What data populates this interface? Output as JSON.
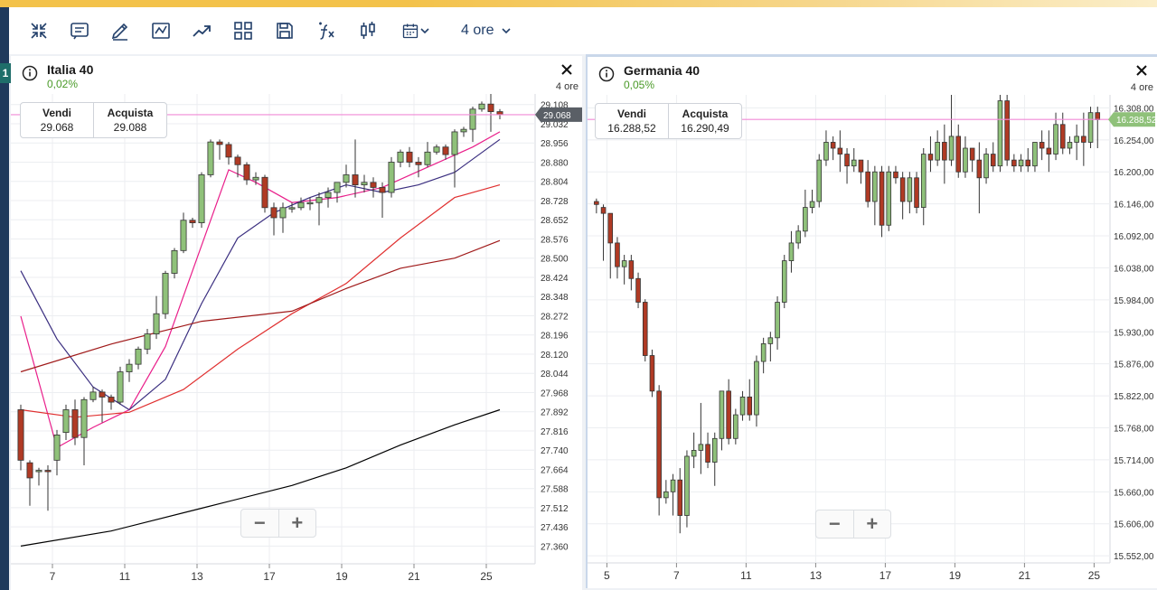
{
  "toolbar": {
    "icons": [
      "compress-icon",
      "notes-icon",
      "draw-icon",
      "chart-type-icon",
      "trend-icon",
      "layout-grid-icon",
      "save-icon",
      "function-icon",
      "candlestick-icon",
      "calendar-icon"
    ],
    "timeframe": "4 ore"
  },
  "sidebar_badge": "1",
  "panels": [
    {
      "title": "Italia 40",
      "change": "0,02%",
      "timeframe": "4 ore",
      "sell_label": "Vendi",
      "sell_value": "29.068",
      "buy_label": "Acquista",
      "buy_value": "29.088",
      "zoom_out": "−",
      "zoom_in": "+"
    },
    {
      "title": "Germania 40",
      "change": "0,05%",
      "timeframe": "4 ore",
      "sell_label": "Vendi",
      "sell_value": "16.288,52",
      "buy_label": "Acquista",
      "buy_value": "16.290,49",
      "zoom_out": "−",
      "zoom_in": "+"
    }
  ],
  "colors": {
    "up_candle": "#8fc17a",
    "down_candle": "#b03a24",
    "price_line": "#f08ad6",
    "accent": "#23406b"
  },
  "chart_data": [
    {
      "type": "candlestick",
      "name": "Italia 40",
      "ylim": [
        27290,
        29150
      ],
      "yticks": [
        "29.108",
        "29.032",
        "28.956",
        "28.880",
        "28.804",
        "28.728",
        "28.652",
        "28.576",
        "28.500",
        "28.424",
        "28.348",
        "28.272",
        "28.196",
        "28.120",
        "28.044",
        "27.968",
        "27.892",
        "27.816",
        "27.740",
        "27.664",
        "27.588",
        "27.512",
        "27.436",
        "27.360"
      ],
      "yticks_values": [
        29108,
        29032,
        28956,
        28880,
        28804,
        28728,
        28652,
        28576,
        28500,
        28424,
        28348,
        28272,
        28196,
        28120,
        28044,
        27968,
        27892,
        27816,
        27740,
        27664,
        27588,
        27512,
        27436,
        27360
      ],
      "xticks": [
        "7",
        "11",
        "13",
        "17",
        "19",
        "21",
        "25"
      ],
      "xticks_index": [
        3.5,
        11.5,
        19.5,
        27.5,
        35.5,
        43.5,
        51.5
      ],
      "current_price": 29068,
      "current_price_label": "29.068",
      "candles_ohlc": [
        [
          27900,
          27700,
          27660,
          27920
        ],
        [
          27690,
          27630,
          27520,
          27700
        ],
        [
          27655,
          27660,
          27600,
          27670
        ],
        [
          27660,
          27655,
          27500,
          27680
        ],
        [
          27700,
          27800,
          27640,
          27820
        ],
        [
          27810,
          27900,
          27780,
          27920
        ],
        [
          27900,
          27790,
          27760,
          27940
        ],
        [
          27790,
          27940,
          27680,
          27950
        ],
        [
          27940,
          27970,
          27930,
          27990
        ],
        [
          27970,
          27950,
          27850,
          27980
        ],
        [
          27950,
          27930,
          27900,
          27960
        ],
        [
          27930,
          28050,
          27920,
          28070
        ],
        [
          28050,
          28080,
          28010,
          28100
        ],
        [
          28080,
          28140,
          28060,
          28150
        ],
        [
          28140,
          28200,
          28120,
          28220
        ],
        [
          28200,
          28280,
          28180,
          28350
        ],
        [
          28280,
          28440,
          28260,
          28450
        ],
        [
          28440,
          28530,
          28420,
          28540
        ],
        [
          28530,
          28650,
          28520,
          28680
        ],
        [
          28650,
          28640,
          28620,
          28660
        ],
        [
          28640,
          28830,
          28620,
          28840
        ],
        [
          28830,
          28960,
          28820,
          28970
        ],
        [
          28960,
          28950,
          28890,
          28970
        ],
        [
          28950,
          28900,
          28870,
          28960
        ],
        [
          28900,
          28870,
          28820,
          28910
        ],
        [
          28870,
          28810,
          28790,
          28880
        ],
        [
          28810,
          28820,
          28790,
          28840
        ],
        [
          28820,
          28700,
          28680,
          28830
        ],
        [
          28700,
          28660,
          28590,
          28720
        ],
        [
          28660,
          28700,
          28600,
          28720
        ],
        [
          28700,
          28700,
          28680,
          28720
        ],
        [
          28700,
          28720,
          28690,
          28740
        ],
        [
          28720,
          28720,
          28690,
          28740
        ],
        [
          28720,
          28740,
          28630,
          28760
        ],
        [
          28740,
          28760,
          28700,
          28780
        ],
        [
          28760,
          28800,
          28720,
          28800
        ],
        [
          28800,
          28830,
          28780,
          28870
        ],
        [
          28830,
          28790,
          28740,
          28970
        ],
        [
          28790,
          28800,
          28760,
          28830
        ],
        [
          28800,
          28780,
          28740,
          28820
        ],
        [
          28780,
          28760,
          28660,
          28800
        ],
        [
          28760,
          28880,
          28740,
          28900
        ],
        [
          28880,
          28920,
          28860,
          28930
        ],
        [
          28920,
          28880,
          28860,
          28940
        ],
        [
          28880,
          28870,
          28820,
          28900
        ],
        [
          28870,
          28920,
          28860,
          28960
        ],
        [
          28920,
          28940,
          28910,
          28950
        ],
        [
          28940,
          28910,
          28890,
          28950
        ],
        [
          28910,
          29000,
          28780,
          29010
        ],
        [
          29000,
          29010,
          28980,
          29020
        ],
        [
          29010,
          29090,
          28960,
          29100
        ],
        [
          29090,
          29110,
          29080,
          29120
        ],
        [
          29110,
          29080,
          29000,
          29160
        ],
        [
          29080,
          29068,
          29050,
          29090
        ]
      ],
      "moving_averages": [
        {
          "color": "#e91e8a",
          "points": [
            [
              0,
              28270
            ],
            [
              4,
              27750
            ],
            [
              8,
              27830
            ],
            [
              12,
              27900
            ],
            [
              16,
              28150
            ],
            [
              20,
              28550
            ],
            [
              23,
              28850
            ],
            [
              26,
              28800
            ],
            [
              30,
              28720
            ],
            [
              35,
              28740
            ],
            [
              40,
              28780
            ],
            [
              45,
              28860
            ],
            [
              50,
              28940
            ],
            [
              53,
              29000
            ]
          ]
        },
        {
          "color": "#3b2f80",
          "points": [
            [
              0,
              28450
            ],
            [
              4,
              28180
            ],
            [
              8,
              27990
            ],
            [
              12,
              27900
            ],
            [
              16,
              28020
            ],
            [
              20,
              28320
            ],
            [
              24,
              28580
            ],
            [
              28,
              28680
            ],
            [
              32,
              28740
            ],
            [
              36,
              28790
            ],
            [
              40,
              28760
            ],
            [
              44,
              28790
            ],
            [
              48,
              28840
            ],
            [
              53,
              28970
            ]
          ]
        },
        {
          "color": "#e03030",
          "points": [
            [
              0,
              27900
            ],
            [
              6,
              27870
            ],
            [
              12,
              27890
            ],
            [
              18,
              27980
            ],
            [
              24,
              28140
            ],
            [
              30,
              28280
            ],
            [
              36,
              28400
            ],
            [
              42,
              28580
            ],
            [
              48,
              28740
            ],
            [
              53,
              28790
            ]
          ]
        },
        {
          "color": "#a01a1a",
          "points": [
            [
              0,
              28050
            ],
            [
              10,
              28160
            ],
            [
              20,
              28250
            ],
            [
              30,
              28290
            ],
            [
              36,
              28380
            ],
            [
              42,
              28460
            ],
            [
              48,
              28500
            ],
            [
              53,
              28570
            ]
          ]
        },
        {
          "color": "#000000",
          "points": [
            [
              0,
              27360
            ],
            [
              10,
              27420
            ],
            [
              20,
              27510
            ],
            [
              30,
              27600
            ],
            [
              36,
              27670
            ],
            [
              42,
              27760
            ],
            [
              48,
              27840
            ],
            [
              53,
              27900
            ]
          ]
        }
      ]
    },
    {
      "type": "candlestick",
      "name": "Germania 40",
      "ylim": [
        15540,
        16330
      ],
      "yticks": [
        "16.308,00",
        "16.254,00",
        "16.200,00",
        "16.146,00",
        "16.092,00",
        "16.038,00",
        "15.984,00",
        "15.930,00",
        "15.876,00",
        "15.822,00",
        "15.768,00",
        "15.714,00",
        "15.660,00",
        "15.606,00",
        "15.552,00"
      ],
      "yticks_values": [
        16308,
        16254,
        16200,
        16146,
        16092,
        16038,
        15984,
        15930,
        15876,
        15822,
        15768,
        15714,
        15660,
        15606,
        15552
      ],
      "xticks": [
        "5",
        "7",
        "11",
        "13",
        "17",
        "19",
        "21",
        "25"
      ],
      "xticks_index": [
        1.5,
        11.5,
        21.5,
        31.5,
        41.5,
        51.5,
        61.5,
        71.5
      ],
      "current_price": 16288.52,
      "current_price_label": "16.288,52",
      "candles_ohlc": [
        [
          16150,
          16145,
          16130,
          16155
        ],
        [
          16140,
          16130,
          16050,
          16145
        ],
        [
          16130,
          16080,
          16020,
          16090
        ],
        [
          16080,
          16040,
          16020,
          16090
        ],
        [
          16040,
          16050,
          16010,
          16060
        ],
        [
          16050,
          16020,
          16000,
          16060
        ],
        [
          16020,
          15980,
          15970,
          16030
        ],
        [
          15980,
          15890,
          15880,
          15985
        ],
        [
          15890,
          15830,
          15820,
          15900
        ],
        [
          15830,
          15650,
          15620,
          15840
        ],
        [
          15650,
          15660,
          15640,
          15680
        ],
        [
          15660,
          15680,
          15620,
          15690
        ],
        [
          15680,
          15620,
          15590,
          15700
        ],
        [
          15620,
          15720,
          15600,
          15730
        ],
        [
          15720,
          15730,
          15700,
          15760
        ],
        [
          15730,
          15740,
          15690,
          15810
        ],
        [
          15740,
          15710,
          15700,
          15760
        ],
        [
          15710,
          15750,
          15670,
          15760
        ],
        [
          15750,
          15830,
          15730,
          15830
        ],
        [
          15830,
          15750,
          15740,
          15850
        ],
        [
          15750,
          15790,
          15740,
          15800
        ],
        [
          15790,
          15820,
          15780,
          15830
        ],
        [
          15820,
          15790,
          15780,
          15850
        ],
        [
          15790,
          15880,
          15770,
          15890
        ],
        [
          15880,
          15910,
          15860,
          15920
        ],
        [
          15910,
          15920,
          15880,
          15930
        ],
        [
          15920,
          15980,
          15900,
          15990
        ],
        [
          15980,
          16050,
          15970,
          16060
        ],
        [
          16050,
          16080,
          16030,
          16100
        ],
        [
          16080,
          16100,
          16070,
          16110
        ],
        [
          16100,
          16140,
          16090,
          16170
        ],
        [
          16140,
          16150,
          16130,
          16170
        ],
        [
          16150,
          16220,
          16140,
          16230
        ],
        [
          16220,
          16250,
          16210,
          16270
        ],
        [
          16250,
          16240,
          16220,
          16260
        ],
        [
          16240,
          16230,
          16200,
          16270
        ],
        [
          16230,
          16210,
          16180,
          16240
        ],
        [
          16210,
          16220,
          16200,
          16240
        ],
        [
          16220,
          16200,
          16180,
          16220
        ],
        [
          16200,
          16150,
          16140,
          16220
        ],
        [
          16150,
          16200,
          16110,
          16210
        ],
        [
          16200,
          16110,
          16090,
          16210
        ],
        [
          16110,
          16200,
          16100,
          16210
        ],
        [
          16200,
          16190,
          16180,
          16210
        ],
        [
          16190,
          16150,
          16120,
          16200
        ],
        [
          16150,
          16190,
          16130,
          16200
        ],
        [
          16190,
          16140,
          16130,
          16200
        ],
        [
          16140,
          16230,
          16110,
          16240
        ],
        [
          16230,
          16220,
          16200,
          16260
        ],
        [
          16220,
          16250,
          16210,
          16270
        ],
        [
          16250,
          16220,
          16180,
          16280
        ],
        [
          16220,
          16260,
          16210,
          16350
        ],
        [
          16260,
          16200,
          16190,
          16280
        ],
        [
          16200,
          16240,
          16190,
          16260
        ],
        [
          16240,
          16220,
          16200,
          16240
        ],
        [
          16220,
          16190,
          16130,
          16250
        ],
        [
          16190,
          16230,
          16180,
          16240
        ],
        [
          16230,
          16210,
          16200,
          16250
        ],
        [
          16210,
          16320,
          16200,
          16330
        ],
        [
          16320,
          16220,
          16210,
          16330
        ],
        [
          16220,
          16210,
          16200,
          16230
        ],
        [
          16210,
          16220,
          16200,
          16230
        ],
        [
          16220,
          16210,
          16200,
          16240
        ],
        [
          16210,
          16250,
          16200,
          16250
        ],
        [
          16250,
          16240,
          16220,
          16270
        ],
        [
          16240,
          16230,
          16200,
          16270
        ],
        [
          16230,
          16280,
          16220,
          16300
        ],
        [
          16280,
          16240,
          16230,
          16300
        ],
        [
          16240,
          16250,
          16230,
          16260
        ],
        [
          16250,
          16260,
          16220,
          16280
        ],
        [
          16260,
          16250,
          16210,
          16300
        ],
        [
          16250,
          16300,
          16240,
          16310
        ],
        [
          16300,
          16288,
          16240,
          16310
        ]
      ],
      "moving_averages": []
    }
  ]
}
